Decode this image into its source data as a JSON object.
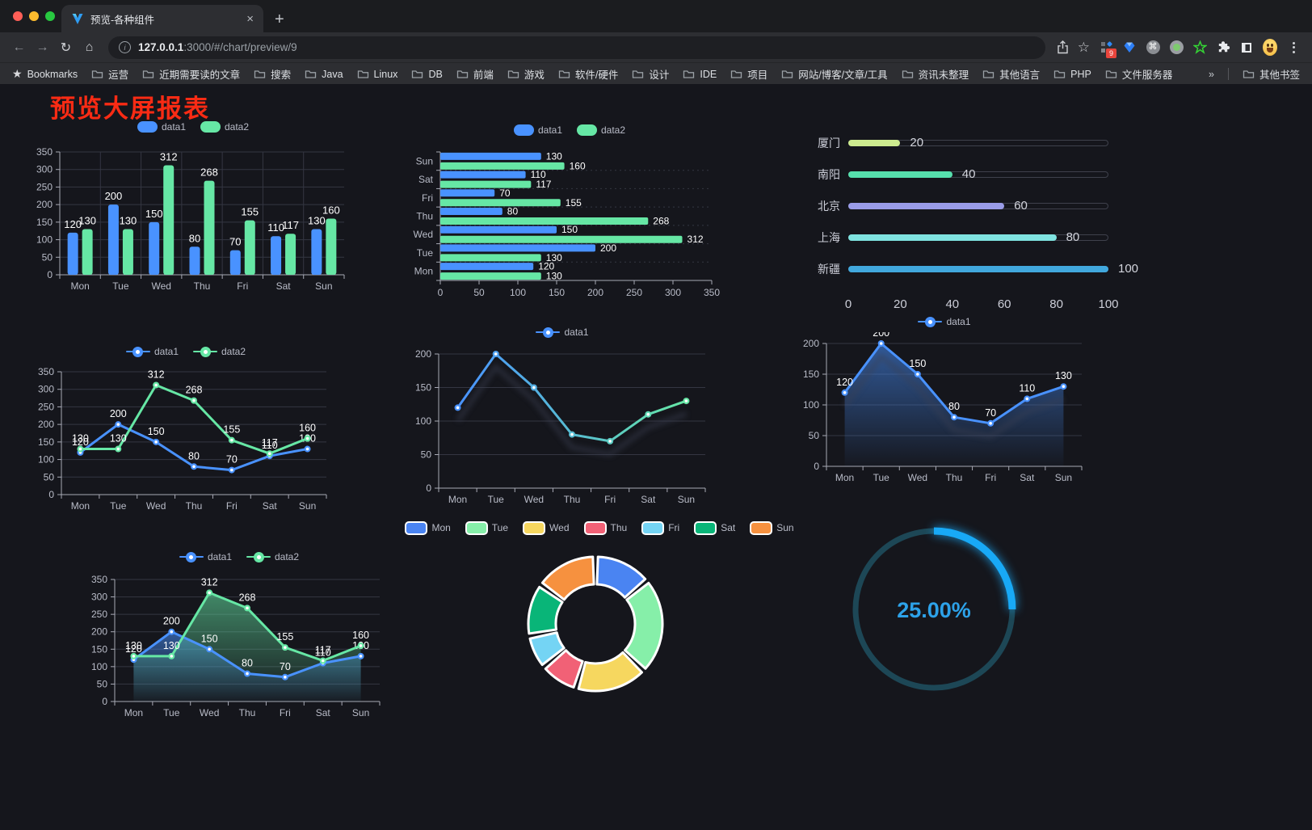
{
  "browser": {
    "traffic_lights": [
      "#ff5f57",
      "#febc2e",
      "#28c840"
    ],
    "tab": {
      "title": "预览-各种组件",
      "close_glyph": "×",
      "new_tab_glyph": "+"
    },
    "nav": {
      "back_glyph": "←",
      "forward_glyph": "→",
      "reload_glyph": "↻",
      "home_glyph": "⌂"
    },
    "url": {
      "host": "127.0.0.1",
      "rest": ":3000/#/chart/preview/9",
      "info_glyph": "i"
    },
    "icons": {
      "star_glyph": "☆",
      "command_glyph": "⌘",
      "extension_badge": "9"
    },
    "bookmarks": {
      "root_label": "Bookmarks",
      "root_star_glyph": "★",
      "folders": [
        "运营",
        "近期需要读的文章",
        "搜索",
        "Java",
        "Linux",
        "DB",
        "前端",
        "游戏",
        "软件/硬件",
        "设计",
        "IDE",
        "项目",
        "网站/博客/文章/工具",
        "资讯未整理",
        "其他语言",
        "PHP",
        "文件服务器"
      ],
      "overflow_glyph": "»",
      "other_label": "其他书签"
    }
  },
  "page": {
    "title": "预览大屏报表",
    "title_color": "#f92b14",
    "background": "#15161c"
  },
  "chart_data": [
    {
      "type": "bar",
      "categories": [
        "Mon",
        "Tue",
        "Wed",
        "Thu",
        "Fri",
        "Sat",
        "Sun"
      ],
      "series": [
        {
          "name": "data1",
          "color": "#4992ff",
          "values": [
            120,
            200,
            150,
            80,
            70,
            110,
            130
          ]
        },
        {
          "name": "data2",
          "color": "#66e7a5",
          "values": [
            130,
            130,
            312,
            268,
            155,
            117,
            160
          ]
        }
      ],
      "ylim": [
        0,
        350
      ],
      "ystep": 50,
      "grid": true,
      "legend_position": "top"
    },
    {
      "type": "bar",
      "orientation": "horizontal",
      "display_order": "reversed",
      "categories": [
        "Mon",
        "Tue",
        "Wed",
        "Thu",
        "Fri",
        "Sat",
        "Sun"
      ],
      "series": [
        {
          "name": "data1",
          "color": "#4992ff",
          "values": [
            120,
            200,
            150,
            80,
            70,
            110,
            130
          ]
        },
        {
          "name": "data2",
          "color": "#66e7a5",
          "values": [
            130,
            130,
            312,
            268,
            155,
            117,
            160
          ]
        }
      ],
      "xlim": [
        0,
        350
      ],
      "xstep": 50,
      "legend_position": "top"
    },
    {
      "type": "progress",
      "items": [
        {
          "label": "厦门",
          "value": 20,
          "color": "#cdeb8f"
        },
        {
          "label": "南阳",
          "value": 40,
          "color": "#56e0ad"
        },
        {
          "label": "北京",
          "value": 60,
          "color": "#9a9ce8"
        },
        {
          "label": "上海",
          "value": 80,
          "color": "#7fe3e0"
        },
        {
          "label": "新疆",
          "value": 100,
          "color": "#41a8dd"
        }
      ],
      "xlim": [
        0,
        100
      ],
      "xticks": [
        0,
        20,
        40,
        60,
        80,
        100
      ]
    },
    {
      "type": "line",
      "categories": [
        "Mon",
        "Tue",
        "Wed",
        "Thu",
        "Fri",
        "Sat",
        "Sun"
      ],
      "series": [
        {
          "name": "data1",
          "color": "#4992ff",
          "values": [
            120,
            200,
            150,
            80,
            70,
            110,
            130
          ]
        },
        {
          "name": "data2",
          "color": "#66e7a5",
          "values": [
            130,
            130,
            312,
            268,
            155,
            117,
            160
          ]
        }
      ],
      "ylim": [
        0,
        350
      ],
      "ystep": 50,
      "value_labels": true,
      "legend_position": "top"
    },
    {
      "type": "line",
      "variant": "gradient",
      "gradient": [
        "#4992ff",
        "#66e7a5"
      ],
      "categories": [
        "Mon",
        "Tue",
        "Wed",
        "Thu",
        "Fri",
        "Sat",
        "Sun"
      ],
      "series": [
        {
          "name": "data1",
          "color": "#4992ff",
          "values": [
            120,
            200,
            150,
            80,
            70,
            110,
            130
          ]
        }
      ],
      "ylim": [
        0,
        200
      ],
      "ystep": 50,
      "value_labels": false,
      "legend_position": "top"
    },
    {
      "type": "area",
      "categories": [
        "Mon",
        "Tue",
        "Wed",
        "Thu",
        "Fri",
        "Sat",
        "Sun"
      ],
      "series": [
        {
          "name": "data1",
          "color": "#4992ff",
          "values": [
            120,
            200,
            150,
            80,
            70,
            110,
            130
          ]
        }
      ],
      "ylim": [
        0,
        200
      ],
      "ystep": 50,
      "value_labels": true,
      "legend_position": "top"
    },
    {
      "type": "area",
      "categories": [
        "Mon",
        "Tue",
        "Wed",
        "Thu",
        "Fri",
        "Sat",
        "Sun"
      ],
      "series": [
        {
          "name": "data1",
          "color": "#4992ff",
          "values": [
            120,
            200,
            150,
            80,
            70,
            110,
            130
          ]
        },
        {
          "name": "data2",
          "color": "#66e7a5",
          "values": [
            130,
            130,
            312,
            268,
            155,
            117,
            160
          ]
        }
      ],
      "ylim": [
        0,
        350
      ],
      "ystep": 50,
      "value_labels": true,
      "legend_position": "top"
    },
    {
      "type": "pie",
      "subtype": "donut",
      "inner_radius_ratio": 0.59,
      "categories": [
        "Mon",
        "Tue",
        "Wed",
        "Thu",
        "Fri",
        "Sat",
        "Sun"
      ],
      "values": [
        120,
        200,
        150,
        80,
        70,
        110,
        130
      ],
      "colors": [
        "#4a84f2",
        "#86efa9",
        "#f6d75f",
        "#f16176",
        "#74d4f4",
        "#09b578",
        "#f6913f"
      ],
      "legend_position": "top"
    },
    {
      "type": "gauge",
      "value": 25,
      "max": 100,
      "label": "25.00%",
      "color": "#18a9f6",
      "track_color": "#1d4756",
      "label_color": "#2da2e9"
    }
  ]
}
